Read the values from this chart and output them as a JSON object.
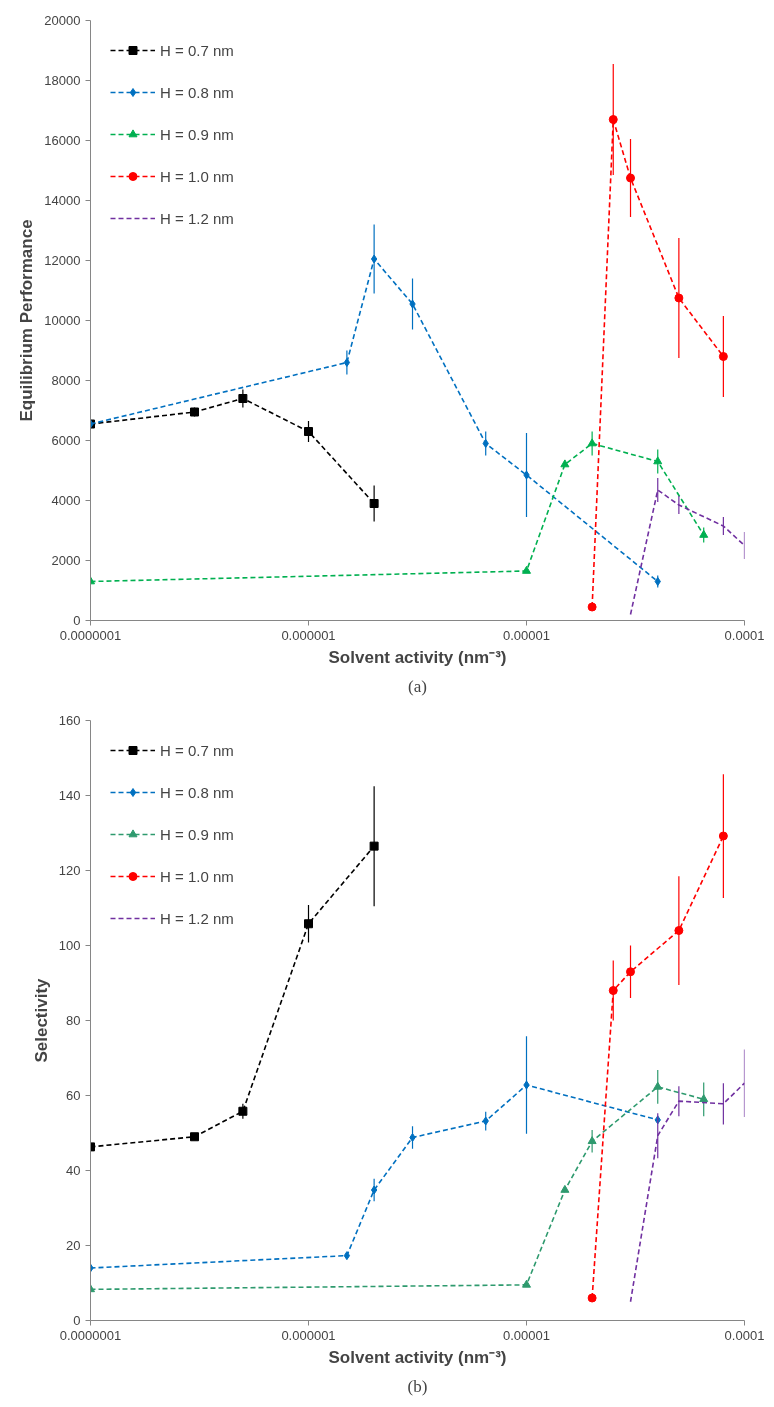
{
  "chart_data": [
    {
      "type": "line",
      "ylabel": "Equilibrium Performance",
      "xlabel": "Solvent activity (nm⁻³)",
      "annotations": [
        "(a)"
      ],
      "log": "x",
      "xlim": [
        1e-07,
        0.0001
      ],
      "xticks": [
        {
          "value": 1e-07,
          "label": "0.0000001"
        },
        {
          "value": 1e-06,
          "label": "0.000001"
        },
        {
          "value": 1e-05,
          "label": "0.00001"
        },
        {
          "value": 0.0001,
          "label": "0.0001"
        }
      ],
      "ylim": [
        0,
        20000
      ],
      "yticks": [
        0,
        2000,
        4000,
        6000,
        8000,
        10000,
        12000,
        14000,
        16000,
        18000,
        20000
      ],
      "grid": false,
      "legend": "top left",
      "line_style": "dashed",
      "series": [
        {
          "name": "H = 0.7 nm",
          "color": "#000000",
          "marker": "square",
          "x": [
            1e-07,
            3e-07,
            5e-07,
            1e-06,
            2e-06
          ],
          "values": [
            6550,
            6950,
            7400,
            6300,
            3900
          ],
          "errors": [
            150,
            150,
            300,
            350,
            600
          ]
        },
        {
          "name": "H = 0.8 nm",
          "color": "#0070c0",
          "marker": "diamond",
          "x": [
            1e-07,
            1.5e-06,
            2e-06,
            3e-06,
            6.5e-06,
            1e-05,
            4e-05
          ],
          "values": [
            6550,
            8600,
            12050,
            10550,
            5900,
            4850,
            1300
          ],
          "errors": [
            150,
            400,
            1150,
            850,
            400,
            1400,
            200
          ]
        },
        {
          "name": "H = 0.9 nm",
          "color": "#00b050",
          "marker": "triangle",
          "x": [
            1e-07,
            1e-05,
            1.5e-05,
            2e-05,
            4e-05,
            6.5e-05
          ],
          "values": [
            1300,
            1650,
            5200,
            5900,
            5300,
            2850
          ],
          "errors": [
            null,
            null,
            null,
            400,
            400,
            250
          ]
        },
        {
          "name": "H = 1.0 nm",
          "color": "#ff0000",
          "marker": "circle",
          "x": [
            2e-05,
            2.5e-05,
            3e-05,
            5e-05,
            8e-05
          ],
          "values": [
            450,
            16700,
            14750,
            10750,
            8800
          ],
          "errors": [
            null,
            1850,
            1300,
            2000,
            1350
          ]
        },
        {
          "name": "H = 1.2 nm",
          "color": "#7030a0",
          "marker": "none",
          "x": [
            3e-05,
            4e-05,
            5e-05,
            8e-05,
            0.0001
          ],
          "values": [
            200,
            4350,
            3850,
            3150,
            2500
          ],
          "errors": [
            null,
            400,
            300,
            300,
            450
          ]
        }
      ]
    },
    {
      "type": "line",
      "ylabel": "Selectivity",
      "xlabel": "Solvent activity (nm⁻³)",
      "annotations": [
        "(b)"
      ],
      "log": "x",
      "xlim": [
        1e-07,
        0.0001
      ],
      "xticks": [
        {
          "value": 1e-07,
          "label": "0.0000001"
        },
        {
          "value": 1e-06,
          "label": "0.000001"
        },
        {
          "value": 1e-05,
          "label": "0.00001"
        },
        {
          "value": 0.0001,
          "label": "0.0001"
        }
      ],
      "ylim": [
        0,
        160
      ],
      "yticks": [
        0,
        20,
        40,
        60,
        80,
        100,
        120,
        140,
        160
      ],
      "grid": false,
      "legend": "top left",
      "line_style": "dashed",
      "series": [
        {
          "name": "H = 0.7 nm",
          "color": "#000000",
          "marker": "square",
          "x": [
            1e-07,
            3e-07,
            5e-07,
            1e-06,
            2e-06
          ],
          "values": [
            46.3,
            49,
            55.8,
            105.8,
            126.5
          ],
          "errors": [
            null,
            null,
            2,
            5,
            16
          ]
        },
        {
          "name": "H = 0.8 nm",
          "color": "#0070c0",
          "marker": "diamond",
          "x": [
            1e-07,
            1.5e-06,
            2e-06,
            3e-06,
            6.5e-06,
            1e-05,
            4e-05
          ],
          "values": [
            14,
            17.3,
            34.8,
            48.8,
            53.2,
            62.8,
            53.5
          ],
          "errors": [
            null,
            null,
            3,
            3,
            2.5,
            13,
            null
          ]
        },
        {
          "name": "H = 0.9 nm",
          "color": "#2e9a6e",
          "marker": "triangle",
          "x": [
            1e-07,
            1e-05,
            1.5e-05,
            2e-05,
            4e-05,
            6.5e-05
          ],
          "values": [
            8.3,
            9.5,
            34.8,
            47.8,
            62.3,
            59
          ],
          "errors": [
            null,
            null,
            null,
            3,
            4.5,
            4.5
          ]
        },
        {
          "name": "H = 1.0 nm",
          "color": "#ff0000",
          "marker": "circle",
          "x": [
            2e-05,
            2.5e-05,
            3e-05,
            5e-05,
            8e-05
          ],
          "values": [
            6,
            88,
            93,
            104,
            129.2
          ],
          "errors": [
            null,
            8,
            7,
            14.5,
            16.5
          ]
        },
        {
          "name": "H = 1.2 nm",
          "color": "#7030a0",
          "marker": "none",
          "x": [
            3e-05,
            4e-05,
            5e-05,
            8e-05,
            0.0001
          ],
          "values": [
            5,
            49.3,
            58.5,
            57.8,
            63.3
          ],
          "errors": [
            null,
            6,
            4,
            5.5,
            9
          ]
        }
      ]
    }
  ]
}
